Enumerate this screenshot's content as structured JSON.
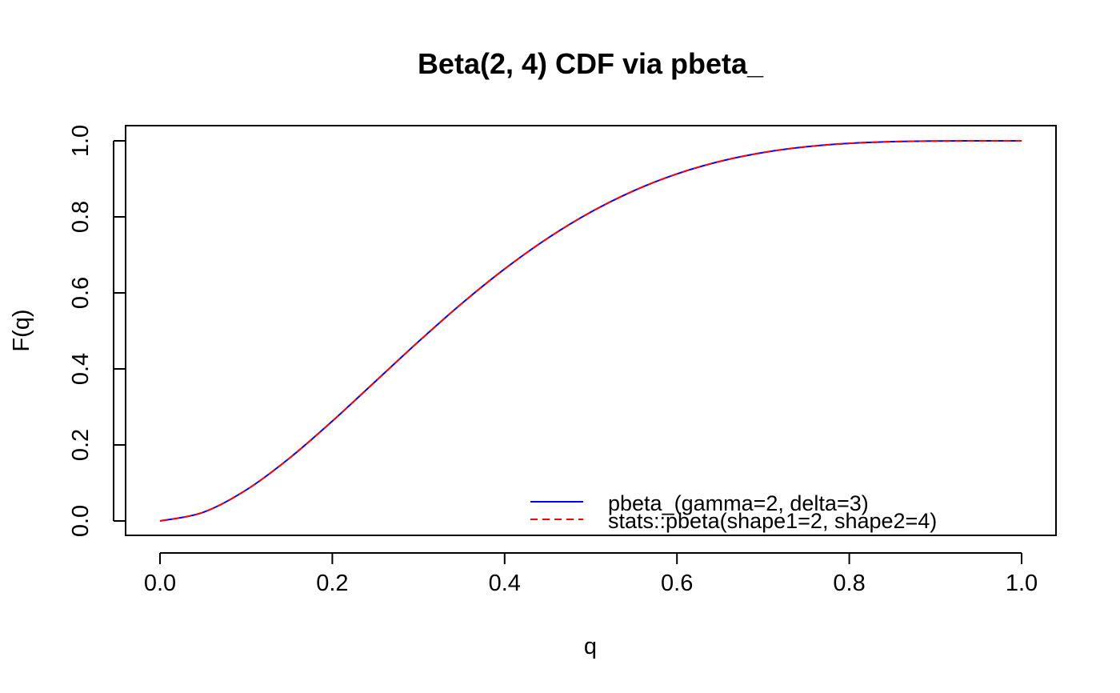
{
  "chart_data": {
    "type": "line",
    "title": "Beta(2, 4) CDF via pbeta_",
    "xlabel": "q",
    "ylabel": "F(q)",
    "xlim": [
      0,
      1
    ],
    "ylim": [
      0,
      1
    ],
    "x_ticks": [
      0.0,
      0.2,
      0.4,
      0.6,
      0.8,
      1.0
    ],
    "x_tick_labels": [
      "0.0",
      "0.2",
      "0.4",
      "0.6",
      "0.8",
      "1.0"
    ],
    "y_ticks": [
      0.0,
      0.2,
      0.4,
      0.6,
      0.8,
      1.0
    ],
    "y_tick_labels": [
      "0.0",
      "0.2",
      "0.4",
      "0.6",
      "0.8",
      "1.0"
    ],
    "grid": false,
    "legend_position": "bottom-right",
    "x": [
      0.0,
      0.05,
      0.1,
      0.15,
      0.2,
      0.25,
      0.3,
      0.35,
      0.4,
      0.45,
      0.5,
      0.55,
      0.6,
      0.65,
      0.7,
      0.75,
      0.8,
      0.85,
      0.9,
      0.95,
      1.0
    ],
    "series": [
      {
        "name": "pbeta_(gamma=2, delta=3)",
        "color": "#0000ff",
        "linestyle": "solid",
        "values": [
          0.0,
          0.0226,
          0.0815,
          0.1648,
          0.2627,
          0.3672,
          0.4718,
          0.5716,
          0.663,
          0.7438,
          0.8125,
          0.8688,
          0.913,
          0.946,
          0.9692,
          0.9844,
          0.9933,
          0.9978,
          0.9995,
          0.99995,
          1.0
        ]
      },
      {
        "name": "stats::pbeta(shape1=2, shape2=4)",
        "color": "#ff0000",
        "linestyle": "dashed",
        "values": [
          0.0,
          0.0226,
          0.0815,
          0.1648,
          0.2627,
          0.3672,
          0.4718,
          0.5716,
          0.663,
          0.7438,
          0.8125,
          0.8688,
          0.913,
          0.946,
          0.9692,
          0.9844,
          0.9933,
          0.9978,
          0.9995,
          0.99995,
          1.0
        ]
      }
    ]
  }
}
